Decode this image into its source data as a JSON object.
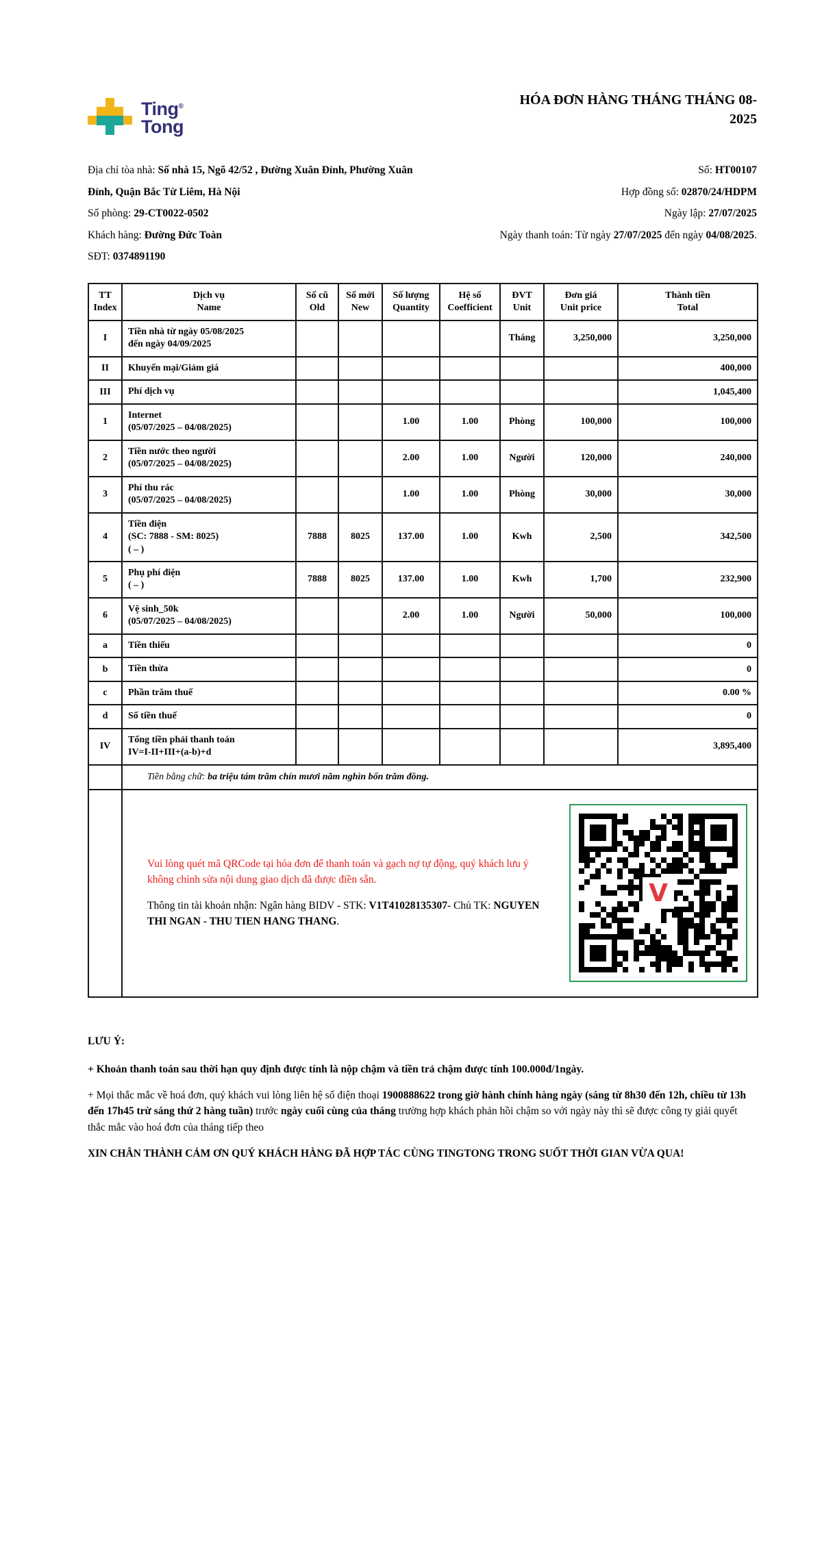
{
  "colors": {
    "note_red": "#ec1c1c",
    "qr_frame_green": "#2e9e57",
    "qr_logo_red": "#e03a3e",
    "logo_yellow": "#f2b41b",
    "logo_teal": "#1ca79b",
    "logo_navy": "#343077"
  },
  "logo": {
    "word1": "Ting",
    "trademark": "®",
    "word2": "Tong"
  },
  "title": "HÓA ĐƠN HÀNG THÁNG THÁNG 08-2025",
  "info_left": [
    {
      "parts": [
        {
          "t": "Địa chỉ tòa nhà: "
        },
        {
          "t": "Số nhà 15, Ngõ 42/52 , Đường Xuân Đỉnh, Phường Xuân Đỉnh, Quận Bắc Từ Liêm, Hà Nội",
          "b": 1
        }
      ]
    },
    {
      "parts": [
        {
          "t": "Số phòng: "
        },
        {
          "t": "29-CT0022-0502",
          "b": 1
        }
      ]
    },
    {
      "parts": [
        {
          "t": "Khách hàng: "
        },
        {
          "t": "Đường Đức Toàn",
          "b": 1
        }
      ]
    },
    {
      "parts": [
        {
          "t": "SĐT: "
        },
        {
          "t": "0374891190",
          "b": 1
        }
      ]
    }
  ],
  "info_right": [
    {
      "parts": [
        {
          "t": "Số: "
        },
        {
          "t": "HT00107",
          "b": 1
        }
      ]
    },
    {
      "parts": [
        {
          "t": "Hợp đồng số: "
        },
        {
          "t": "02870/24/HDPM",
          "b": 1
        }
      ]
    },
    {
      "parts": [
        {
          "t": "Ngày lập: "
        },
        {
          "t": "27/07/2025",
          "b": 1
        }
      ]
    },
    {
      "parts": [
        {
          "t": "Ngày thanh toán: Từ ngày "
        },
        {
          "t": "27/07/2025",
          "b": 1
        },
        {
          "t": " đến ngày "
        },
        {
          "t": "04/08/2025",
          "b": 1
        },
        {
          "t": "."
        }
      ]
    }
  ],
  "table": {
    "headers": [
      [
        "TT",
        "Index"
      ],
      [
        "Dịch vụ",
        "Name"
      ],
      [
        "Số cũ",
        "Old"
      ],
      [
        "Số mới",
        "New"
      ],
      [
        "Số lượng",
        "Quantity"
      ],
      [
        "Hệ số",
        "Coefficient"
      ],
      [
        "ĐVT",
        "Unit"
      ],
      [
        "Đơn giá",
        "Unit price"
      ],
      [
        "Thành tiền",
        "Total"
      ]
    ],
    "rows": [
      {
        "idx": "I",
        "name": [
          "Tiền nhà từ ngày 05/08/2025",
          "đến ngày 04/09/2025"
        ],
        "old": "",
        "new": "",
        "qty": "",
        "coef": "",
        "unit": "Tháng",
        "price": "3,250,000",
        "total": "3,250,000"
      },
      {
        "idx": "II",
        "name": [
          "Khuyến mại/Giảm giá"
        ],
        "old": "",
        "new": "",
        "qty": "",
        "coef": "",
        "unit": "",
        "price": "",
        "total": "400,000"
      },
      {
        "idx": "III",
        "name": [
          "Phí dịch vụ"
        ],
        "old": "",
        "new": "",
        "qty": "",
        "coef": "",
        "unit": "",
        "price": "",
        "total": "1,045,400"
      },
      {
        "idx": "1",
        "name": [
          "Internet",
          "(05/07/2025 – 04/08/2025)"
        ],
        "old": "",
        "new": "",
        "qty": "1.00",
        "coef": "1.00",
        "unit": "Phòng",
        "price": "100,000",
        "total": "100,000"
      },
      {
        "idx": "2",
        "name": [
          "Tiền nước theo người",
          "(05/07/2025 – 04/08/2025)"
        ],
        "old": "",
        "new": "",
        "qty": "2.00",
        "coef": "1.00",
        "unit": "Người",
        "price": "120,000",
        "total": "240,000"
      },
      {
        "idx": "3",
        "name": [
          "Phí thu rác",
          "(05/07/2025 – 04/08/2025)"
        ],
        "old": "",
        "new": "",
        "qty": "1.00",
        "coef": "1.00",
        "unit": "Phòng",
        "price": "30,000",
        "total": "30,000"
      },
      {
        "idx": "4",
        "name": [
          "Tiền điện",
          "(SC: 7888 - SM: 8025)",
          "( – )"
        ],
        "old": "7888",
        "new": "8025",
        "qty": "137.00",
        "coef": "1.00",
        "unit": "Kwh",
        "price": "2,500",
        "total": "342,500"
      },
      {
        "idx": "5",
        "name": [
          "Phụ phí điện",
          "( – )"
        ],
        "old": "7888",
        "new": "8025",
        "qty": "137.00",
        "coef": "1.00",
        "unit": "Kwh",
        "price": "1,700",
        "total": "232,900"
      },
      {
        "idx": "6",
        "name": [
          "Vệ sinh_50k",
          "(05/07/2025 – 04/08/2025)"
        ],
        "old": "",
        "new": "",
        "qty": "2.00",
        "coef": "1.00",
        "unit": "Người",
        "price": "50,000",
        "total": "100,000"
      },
      {
        "idx": "a",
        "name": [
          "Tiền thiếu"
        ],
        "old": "",
        "new": "",
        "qty": "",
        "coef": "",
        "unit": "",
        "price": "",
        "total": "0"
      },
      {
        "idx": "b",
        "name": [
          "Tiền thừa"
        ],
        "old": "",
        "new": "",
        "qty": "",
        "coef": "",
        "unit": "",
        "price": "",
        "total": "0"
      },
      {
        "idx": "c",
        "name": [
          "Phần trăm thuế"
        ],
        "old": "",
        "new": "",
        "qty": "",
        "coef": "",
        "unit": "",
        "price": "",
        "total": "0.00 %"
      },
      {
        "idx": "d",
        "name": [
          "Số tiền thuế"
        ],
        "old": "",
        "new": "",
        "qty": "",
        "coef": "",
        "unit": "",
        "price": "",
        "total": "0"
      },
      {
        "idx": "IV",
        "name": [
          "Tổng tiền phải thanh toán",
          "IV=I-II+III+(a-b)+d"
        ],
        "old": "",
        "new": "",
        "qty": "",
        "coef": "",
        "unit": "",
        "price": "",
        "total": "3,895,400"
      }
    ],
    "amount_in_words": {
      "parts": [
        {
          "t": "Tiền bằng chữ: ",
          "i": 1
        },
        {
          "t": "ba triệu tám trăm chín mươi năm nghìn bốn trăm đồng",
          "b": 1,
          "i": 1
        },
        {
          "t": ".",
          "b": 1,
          "i": 1
        }
      ]
    }
  },
  "payment": {
    "qr_note": {
      "parts": [
        {
          "t": "Vui lòng quét mã QRCode tại hóa đơn để thanh toán và gạch nợ tự động, quý khách lưu ý không chỉnh sửa nội dung giao dịch đã được điền sẵn.",
          "red": 1
        }
      ]
    },
    "account": {
      "parts": [
        {
          "t": "Thông tin tài khoản nhận: Ngân hàng BIDV - STK: "
        },
        {
          "t": "V1T41028135307",
          "b": 1
        },
        {
          "t": "- Chủ TK: "
        },
        {
          "t": "NGUYEN THI NGAN - THU TIEN HANG THANG",
          "b": 1
        },
        {
          "t": "."
        }
      ]
    },
    "qr_logo_letter": "V"
  },
  "notes": {
    "heading": "LƯU Ý:",
    "items": [
      {
        "parts": [
          {
            "t": "+ Khoản thanh toán sau thời hạn quy định được tính là nộp chậm và tiền trả chậm được tính 100.000đ/1ngày.",
            "b": 1
          }
        ]
      },
      {
        "parts": [
          {
            "t": "+ Mọi thắc mắc về hoá đơn, quý khách vui lòng liên hệ số điện thoại "
          },
          {
            "t": "1900888622 trong giờ hành chính hàng ngày (sáng từ 8h30 đến 12h, chiều từ 13h đến 17h45 trừ sáng thứ 2 hàng tuần)",
            "b": 1
          },
          {
            "t": " trước "
          },
          {
            "t": "ngày cuối cùng của tháng",
            "b": 1
          },
          {
            "t": " trường hợp khách phản hồi chậm so với ngày này thì sẽ được công ty giải quyết thắc mắc vào hoá đơn của tháng tiếp theo"
          }
        ]
      },
      {
        "parts": [
          {
            "t": "XIN CHÂN THÀNH CẢM ƠN QUÝ KHÁCH HÀNG ĐÃ HỢP TÁC CÙNG TINGTONG TRONG SUỐT THỜI GIAN VỪA QUA!",
            "b": 1
          }
        ]
      }
    ]
  }
}
